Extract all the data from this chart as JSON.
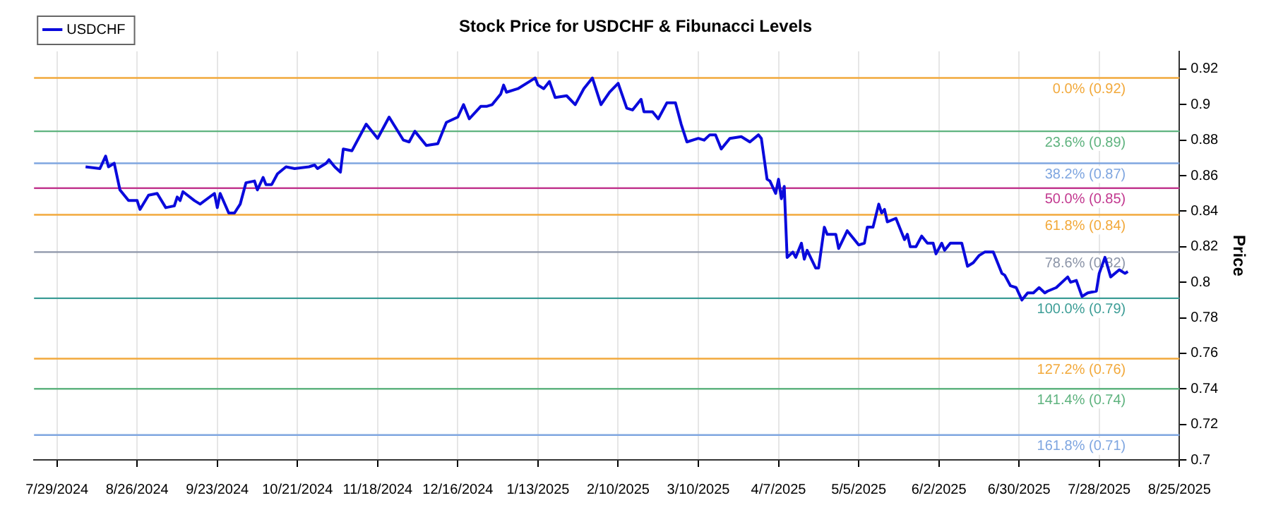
{
  "chart_data": {
    "type": "line",
    "title": "Stock Price for USDCHF & Fibunacci Levels",
    "ylabel": "Price",
    "x": [
      "2024-08-08",
      "2024-08-13",
      "2024-08-15",
      "2024-08-16",
      "2024-08-18",
      "2024-08-20",
      "2024-08-23",
      "2024-08-26",
      "2024-08-27",
      "2024-08-30",
      "2024-09-02",
      "2024-09-05",
      "2024-09-08",
      "2024-09-09",
      "2024-09-10",
      "2024-09-11",
      "2024-09-15",
      "2024-09-17",
      "2024-09-22",
      "2024-09-23",
      "2024-09-24",
      "2024-09-27",
      "2024-09-29",
      "2024-10-01",
      "2024-10-03",
      "2024-10-06",
      "2024-10-07",
      "2024-10-09",
      "2024-10-10",
      "2024-10-12",
      "2024-10-14",
      "2024-10-17",
      "2024-10-20",
      "2024-10-25",
      "2024-10-27",
      "2024-10-28",
      "2024-10-31",
      "2024-11-01",
      "2024-11-03",
      "2024-11-05",
      "2024-11-06",
      "2024-11-09",
      "2024-11-14",
      "2024-11-18",
      "2024-11-22",
      "2024-11-27",
      "2024-11-29",
      "2024-12-01",
      "2024-12-05",
      "2024-12-09",
      "2024-12-12",
      "2024-12-16",
      "2024-12-18",
      "2024-12-20",
      "2024-12-24",
      "2024-12-26",
      "2024-12-28",
      "2024-12-31",
      "2025-01-01",
      "2025-01-02",
      "2025-01-06",
      "2025-01-11",
      "2025-01-12",
      "2025-01-13",
      "2025-01-15",
      "2025-01-17",
      "2025-01-19",
      "2025-01-23",
      "2025-01-26",
      "2025-01-29",
      "2025-02-01",
      "2025-02-04",
      "2025-02-07",
      "2025-02-10",
      "2025-02-13",
      "2025-02-15",
      "2025-02-18",
      "2025-02-19",
      "2025-02-22",
      "2025-02-24",
      "2025-02-27",
      "2025-03-02",
      "2025-03-04",
      "2025-03-06",
      "2025-03-10",
      "2025-03-12",
      "2025-03-14",
      "2025-03-16",
      "2025-03-18",
      "2025-03-21",
      "2025-03-25",
      "2025-03-28",
      "2025-03-31",
      "2025-04-01",
      "2025-04-03",
      "2025-04-04",
      "2025-04-06",
      "2025-04-07",
      "2025-04-08",
      "2025-04-09",
      "2025-04-10",
      "2025-04-12",
      "2025-04-13",
      "2025-04-15",
      "2025-04-16",
      "2025-04-17",
      "2025-04-20",
      "2025-04-21",
      "2025-04-23",
      "2025-04-24",
      "2025-04-27",
      "2025-04-28",
      "2025-05-01",
      "2025-05-03",
      "2025-05-05",
      "2025-05-07",
      "2025-05-08",
      "2025-05-10",
      "2025-05-12",
      "2025-05-13",
      "2025-05-14",
      "2025-05-15",
      "2025-05-18",
      "2025-05-21",
      "2025-05-22",
      "2025-05-23",
      "2025-05-25",
      "2025-05-27",
      "2025-05-29",
      "2025-05-31",
      "2025-06-01",
      "2025-06-03",
      "2025-06-04",
      "2025-06-06",
      "2025-06-10",
      "2025-06-12",
      "2025-06-14",
      "2025-06-16",
      "2025-06-18",
      "2025-06-21",
      "2025-06-24",
      "2025-06-25",
      "2025-06-27",
      "2025-06-29",
      "2025-07-01",
      "2025-07-03",
      "2025-07-05",
      "2025-07-07",
      "2025-07-09",
      "2025-07-10",
      "2025-07-13",
      "2025-07-17",
      "2025-07-18",
      "2025-07-20",
      "2025-07-22",
      "2025-07-24",
      "2025-07-27",
      "2025-07-28",
      "2025-07-30",
      "2025-08-01",
      "2025-08-04",
      "2025-08-06",
      "2025-08-07"
    ],
    "series": [
      {
        "name": "USDCHF",
        "color": "#0a0adc",
        "values": [
          0.865,
          0.864,
          0.871,
          0.865,
          0.867,
          0.852,
          0.846,
          0.846,
          0.841,
          0.849,
          0.85,
          0.842,
          0.843,
          0.848,
          0.846,
          0.851,
          0.846,
          0.844,
          0.85,
          0.842,
          0.85,
          0.839,
          0.839,
          0.844,
          0.856,
          0.857,
          0.852,
          0.859,
          0.855,
          0.855,
          0.861,
          0.865,
          0.864,
          0.865,
          0.866,
          0.864,
          0.867,
          0.869,
          0.865,
          0.862,
          0.875,
          0.874,
          0.889,
          0.881,
          0.893,
          0.88,
          0.879,
          0.885,
          0.877,
          0.878,
          0.89,
          0.893,
          0.9,
          0.892,
          0.899,
          0.899,
          0.9,
          0.906,
          0.911,
          0.907,
          0.909,
          0.914,
          0.915,
          0.911,
          0.909,
          0.913,
          0.904,
          0.905,
          0.9,
          0.909,
          0.915,
          0.9,
          0.907,
          0.912,
          0.898,
          0.897,
          0.903,
          0.896,
          0.896,
          0.892,
          0.901,
          0.901,
          0.889,
          0.879,
          0.881,
          0.88,
          0.883,
          0.883,
          0.875,
          0.881,
          0.882,
          0.879,
          0.883,
          0.881,
          0.858,
          0.857,
          0.85,
          0.858,
          0.847,
          0.854,
          0.814,
          0.817,
          0.814,
          0.822,
          0.813,
          0.818,
          0.808,
          0.808,
          0.831,
          0.827,
          0.827,
          0.819,
          0.829,
          0.825,
          0.821,
          0.822,
          0.831,
          0.831,
          0.844,
          0.839,
          0.841,
          0.834,
          0.836,
          0.824,
          0.827,
          0.82,
          0.82,
          0.826,
          0.822,
          0.822,
          0.816,
          0.822,
          0.818,
          0.822,
          0.822,
          0.809,
          0.811,
          0.815,
          0.817,
          0.817,
          0.805,
          0.804,
          0.798,
          0.797,
          0.79,
          0.794,
          0.794,
          0.797,
          0.794,
          0.795,
          0.797,
          0.803,
          0.8,
          0.801,
          0.792,
          0.794,
          0.795,
          0.805,
          0.814,
          0.803,
          0.807,
          0.805,
          0.806
        ]
      }
    ],
    "xlim": [
      "2024-07-21",
      "2025-08-25"
    ],
    "xticks": [
      {
        "value": "2024-07-29",
        "label": "7/29/2024"
      },
      {
        "value": "2024-08-26",
        "label": "8/26/2024"
      },
      {
        "value": "2024-09-23",
        "label": "9/23/2024"
      },
      {
        "value": "2024-10-21",
        "label": "10/21/2024"
      },
      {
        "value": "2024-11-18",
        "label": "11/18/2024"
      },
      {
        "value": "2024-12-16",
        "label": "12/16/2024"
      },
      {
        "value": "2025-01-13",
        "label": "1/13/2025"
      },
      {
        "value": "2025-02-10",
        "label": "2/10/2025"
      },
      {
        "value": "2025-03-10",
        "label": "3/10/2025"
      },
      {
        "value": "2025-04-07",
        "label": "4/7/2025"
      },
      {
        "value": "2025-05-05",
        "label": "5/5/2025"
      },
      {
        "value": "2025-06-02",
        "label": "6/2/2025"
      },
      {
        "value": "2025-06-30",
        "label": "6/30/2025"
      },
      {
        "value": "2025-07-28",
        "label": "7/28/2025"
      },
      {
        "value": "2025-08-25",
        "label": "8/25/2025"
      }
    ],
    "ylim": [
      0.7,
      0.93
    ],
    "yticks": [
      0.7,
      0.72,
      0.74,
      0.76,
      0.78,
      0.8,
      0.82,
      0.84,
      0.86,
      0.88,
      0.9,
      0.92
    ],
    "ref_lines": [
      {
        "axis": "y",
        "value": 0.915,
        "label": "0.0% (0.92)",
        "color": "#f2a93b"
      },
      {
        "axis": "y",
        "value": 0.885,
        "label": "23.6% (0.89)",
        "color": "#5fb37f"
      },
      {
        "axis": "y",
        "value": 0.867,
        "label": "38.2% (0.87)",
        "color": "#7fa6e0"
      },
      {
        "axis": "y",
        "value": 0.853,
        "label": "50.0% (0.85)",
        "color": "#c2388f"
      },
      {
        "axis": "y",
        "value": 0.838,
        "label": "61.8% (0.84)",
        "color": "#f2a93b"
      },
      {
        "axis": "y",
        "value": 0.817,
        "label": "78.6% (0.82)",
        "color": "#8c95a8"
      },
      {
        "axis": "y",
        "value": 0.791,
        "label": "100.0% (0.79)",
        "color": "#3c9d96"
      },
      {
        "axis": "y",
        "value": 0.757,
        "label": "127.2% (0.76)",
        "color": "#f2a93b"
      },
      {
        "axis": "y",
        "value": 0.74,
        "label": "141.4% (0.74)",
        "color": "#5fb37f"
      },
      {
        "axis": "y",
        "value": 0.714,
        "label": "161.8% (0.71)",
        "color": "#7fa6e0"
      }
    ],
    "grid": "x",
    "legend": "top left",
    "marker": "none",
    "line_style": "solid"
  }
}
